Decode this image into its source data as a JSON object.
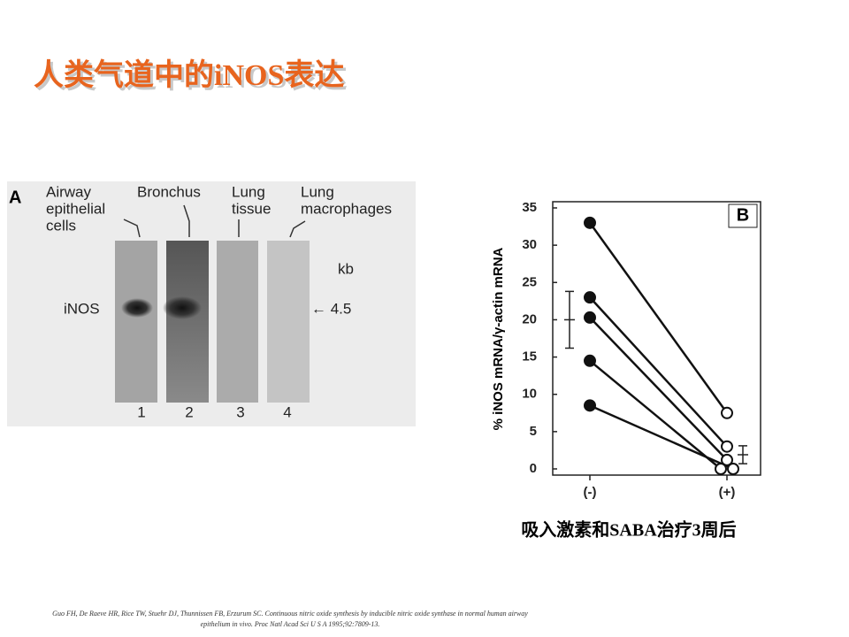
{
  "title": "人类气道中的iNOS表达",
  "panel_a": {
    "letter": "A",
    "lane_labels": [
      [
        "Airway",
        "epithelial",
        "cells"
      ],
      [
        "Bronchus"
      ],
      [
        "Lung",
        "tissue"
      ],
      [
        "Lung",
        "macrophages"
      ]
    ],
    "size_unit": "kb",
    "band_label": "iNOS",
    "band_size": "← 4.5",
    "lane_numbers": [
      "1",
      "2",
      "3",
      "4"
    ]
  },
  "chart_data": {
    "type": "line",
    "panel_letter": "B",
    "y_label": "% iNOS mRNA/γ-actin mRNA",
    "categories": [
      "(-)",
      "(+)"
    ],
    "series": [
      {
        "color": "#111111",
        "values": [
          33,
          7.5
        ]
      },
      {
        "color": "#111111",
        "values": [
          23,
          3
        ]
      },
      {
        "color": "#111111",
        "values": [
          20.3,
          1.2
        ]
      },
      {
        "color": "#111111",
        "values": [
          14.5,
          0
        ]
      },
      {
        "color": "#111111",
        "values": [
          8.5,
          0
        ]
      }
    ],
    "summary": [
      {
        "mean": 20,
        "error": 3.8
      },
      {
        "mean": 1.9,
        "error": 1.2
      }
    ],
    "ylim": [
      0,
      35
    ],
    "yticks": [
      0,
      5,
      10,
      15,
      20,
      25,
      30,
      35
    ]
  },
  "caption": "吸入激素和SABA治疗3周后",
  "citation": [
    "Guo FH, De Raeve HR, Rice TW, Stuehr DJ, Thunnissen FB, Erzurum SC. Continuous nitric oxide synthesis by inducible nitric oxide synthase in normal human airway",
    "epithelium in vivo. Proc Natl Acad Sci U S A 1995;92:7809-13."
  ]
}
